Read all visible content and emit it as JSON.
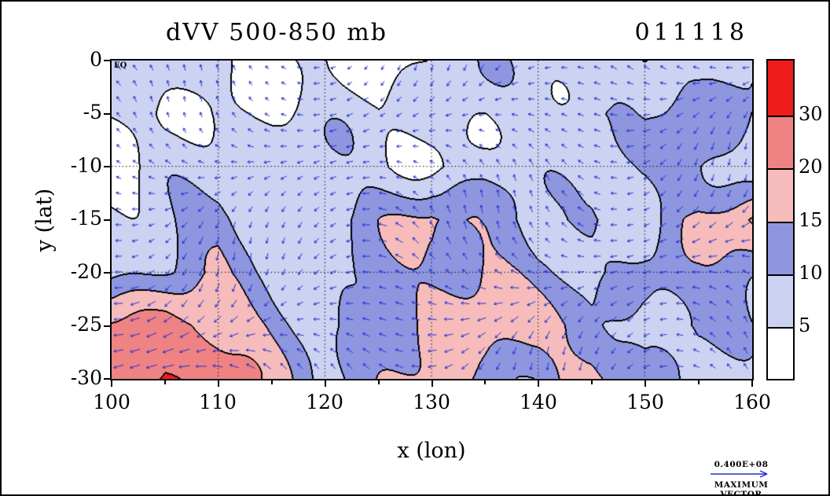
{
  "title": "dVV 500-850 mb",
  "date_label": "011118",
  "axes": {
    "x_label": "x (lon)",
    "y_label": "y (lat)",
    "eq_label": "EQ",
    "x_ticks": [
      "100",
      "110",
      "120",
      "130",
      "140",
      "150",
      "160"
    ],
    "y_ticks": [
      "0",
      "-5",
      "-10",
      "-15",
      "-20",
      "-25",
      "-30"
    ]
  },
  "colorbar": {
    "labels": [
      "30",
      "20",
      "15",
      "10",
      "5"
    ],
    "colors_top_to_bottom": [
      "#ee1c1c",
      "#ef8383",
      "#f6bcbc",
      "#8f96e0",
      "#ccd2f2",
      "#ffffff"
    ]
  },
  "max_vector": {
    "value": "0.400E+08",
    "label": "MAXIMUM VECTOR"
  },
  "chart_data": {
    "type": "heatmap",
    "subtype": "filled-contour-with-wind-vector-overlay",
    "title": "dVV 500-850 mb",
    "date": "011118",
    "xlabel": "x (lon)",
    "ylabel": "y (lat)",
    "xlim": [
      100,
      160
    ],
    "ylim": [
      -30,
      0
    ],
    "x_ticks": [
      100,
      110,
      120,
      130,
      140,
      150,
      160
    ],
    "y_ticks": [
      0,
      -5,
      -10,
      -15,
      -20,
      -25,
      -30
    ],
    "gridlines": "dotted every 10 units both axes",
    "contour_levels": [
      5,
      10,
      15,
      20,
      30
    ],
    "level_colors_low_to_high": [
      "#ffffff",
      "#ccd2f2",
      "#8f96e0",
      "#f6bcbc",
      "#ef8383",
      "#ee1c1c"
    ],
    "contour_color": "#000000",
    "vector_color": "#2230d0",
    "max_vector_value": "0.400E+08",
    "grid_x": [
      100,
      105,
      110,
      115,
      120,
      125,
      130,
      135,
      140,
      145,
      150,
      155,
      160
    ],
    "grid_y": [
      0,
      -5,
      -10,
      -15,
      -20,
      -25,
      -30
    ],
    "grid_values": [
      [
        3,
        6,
        6,
        3,
        6,
        3,
        6,
        7,
        6,
        8,
        12,
        8,
        12
      ],
      [
        6,
        4,
        7,
        6,
        6,
        5,
        7,
        6,
        8,
        12,
        8,
        12,
        10
      ],
      [
        4,
        7,
        6,
        7,
        8,
        7,
        6,
        8,
        7,
        6,
        8,
        12,
        8
      ],
      [
        6,
        8,
        12,
        7,
        8,
        13,
        17,
        12,
        7,
        12,
        8,
        16,
        20
      ],
      [
        8,
        10,
        14,
        10,
        8,
        12,
        14,
        17,
        12,
        8,
        12,
        10,
        12
      ],
      [
        22,
        24,
        20,
        14,
        8,
        10,
        16,
        20,
        16,
        12,
        8,
        12,
        10
      ],
      [
        27,
        31,
        22,
        16,
        10,
        14,
        18,
        14,
        10,
        16,
        12,
        8,
        6
      ]
    ],
    "notes": "Shear of vertical velocity field 500-850 mb; strongest magnitudes (20-30+) in the south-west corner and along a SE-trending band near 130-140E / 15-25S; wind vectors mostly westward."
  }
}
